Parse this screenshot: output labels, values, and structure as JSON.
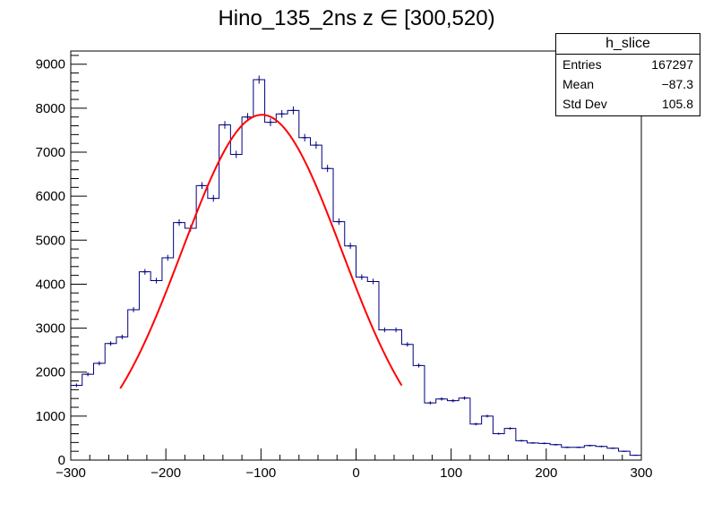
{
  "chart_data": {
    "type": "bar",
    "title": "Hino_135_2ns z  ∈ [300,520)",
    "xlabel": "",
    "ylabel": "",
    "xlim": [
      -300,
      300
    ],
    "ylim": [
      0,
      9300
    ],
    "xticks": [
      "−300",
      "−200",
      "−100",
      "0",
      "100",
      "200",
      "300"
    ],
    "yticks": [
      "0",
      "1000",
      "2000",
      "3000",
      "4000",
      "5000",
      "6000",
      "7000",
      "8000",
      "9000"
    ],
    "grid": false,
    "bin_width": 12,
    "bin_low_edges": [
      -300,
      -288,
      -276,
      -264,
      -252,
      -240,
      -228,
      -216,
      -204,
      -192,
      -180,
      -168,
      -156,
      -144,
      -132,
      -120,
      -108,
      -96,
      -84,
      -72,
      -60,
      -48,
      -36,
      -24,
      -12,
      0,
      12,
      24,
      36,
      48,
      60,
      72,
      84,
      96,
      108,
      120,
      132,
      144,
      156,
      168,
      180,
      192,
      204,
      216,
      228,
      240,
      252,
      264,
      276,
      288
    ],
    "counts": [
      1700,
      1950,
      2200,
      2650,
      2800,
      3420,
      4280,
      4080,
      4600,
      5400,
      5270,
      6240,
      5950,
      7620,
      6950,
      7800,
      8650,
      7680,
      7870,
      7950,
      7330,
      7160,
      6630,
      5420,
      4870,
      4160,
      4060,
      2960,
      2960,
      2630,
      2150,
      1300,
      1390,
      1350,
      1410,
      820,
      1000,
      600,
      720,
      440,
      390,
      380,
      350,
      290,
      290,
      330,
      310,
      270,
      200,
      110
    ],
    "fit": {
      "name": "gaus",
      "x_range": [
        -248,
        48
      ],
      "constant": 7850,
      "mean": -99,
      "sigma": 84
    },
    "stats_box": {
      "title": "h_slice",
      "rows": [
        {
          "label": "Entries",
          "value": "167297"
        },
        {
          "label": "Mean",
          "value": "−87.3"
        },
        {
          "label": "Std Dev",
          "value": "105.8"
        }
      ]
    },
    "colors": {
      "histogram": "#00007f",
      "fit": "#ff0000",
      "axis": "#000000"
    }
  }
}
